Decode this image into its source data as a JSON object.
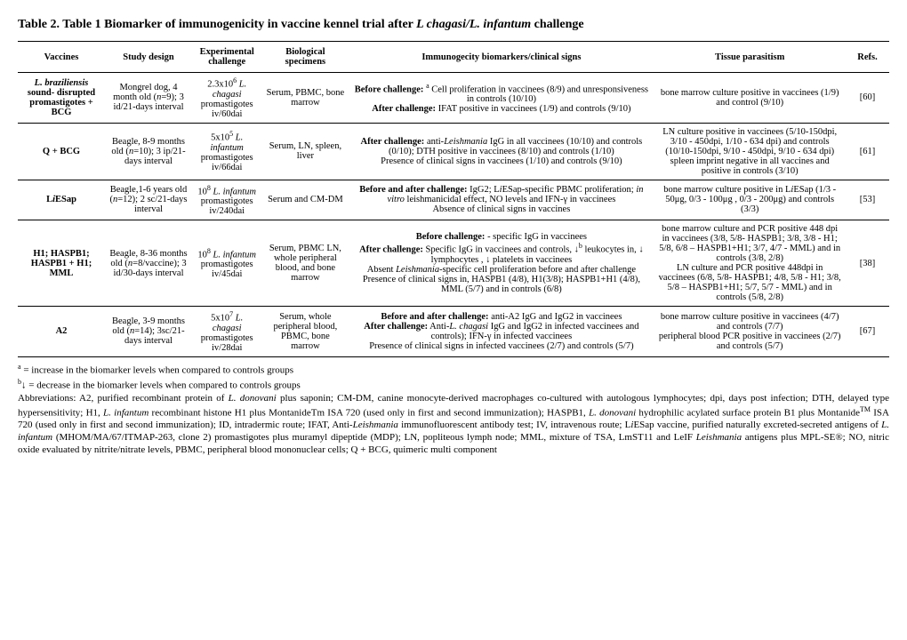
{
  "title_prefix": "Table 2. Table 1 Biomarker of immunogenicity in vaccine kennel trial after ",
  "title_em": "L chagasi/L. infantum",
  "title_suffix": " challenge",
  "headers": {
    "c1": "Vaccines",
    "c2": "Study design",
    "c3": "Experimental challenge",
    "c4": "Biological specimens",
    "c5": "Immunogecity biomarkers/clinical signs",
    "c6": "Tissue parasitism",
    "c7": "Refs."
  },
  "rows": [
    {
      "vaccine": "<em>L. braziliensis</em> sound- disrupted promastigotes + BCG",
      "study": "Mongrel dog, 4 month old (<em>n</em>=9); 3 id/21-days interval",
      "challenge": "2.3x10<span class='sup'>6</span> <em>L. chagasi</em> promastigotes iv/60dai",
      "specimen": "Serum, PBMC, bone marrow",
      "biom": "<b>Before challenge:</b> <span class='sup'>a</span> Cell proliferation  in vaccinees (8/9) and unresponsiveness in controls (10/10)<br><b>After challenge:</b> IFAT positive in vaccinees (1/9) and controls (9/10)",
      "tissue": "bone marrow culture positive in vaccinees (1/9) and control (9/10)",
      "ref": "[60]"
    },
    {
      "vaccine": "Q + BCG",
      "study": "Beagle, 8-9 months old (<em>n</em>=10); 3 ip/21-days interval",
      "challenge": "5x10<span class='sup'>5</span> <em>L. infantum</em> promastigotes iv/66dai",
      "specimen": "Serum, LN, spleen, liver",
      "biom": "<b>After challenge:</b>  anti-<em>Leishmania</em> IgG in all vaccinees (10/10) and controls (0/10); DTH positive in vaccinees (8/10) and controls (1/10)<br>Presence of clinical signs in vaccinees (1/10) and controls (9/10)",
      "tissue": "LN culture positive in vaccinees (5/10-150dpi, 3/10 - 450dpi, 1/10 - 634 dpi) and controls (10/10-150dpi, 9/10 - 450dpi, 9/10 - 634 dpi)<br>spleen imprint negative in all vaccines and positive in controls (3/10)",
      "ref": "[61]"
    },
    {
      "vaccine": "L<em>i</em>ESap",
      "study": "Beagle,1-6 years old (<em>n</em>=12); 2 sc/21-days interval",
      "challenge": "10<span class='sup'>8</span> <em>L. infantum</em> promastigotes iv/240dai",
      "specimen": "Serum and CM-DM",
      "biom": "<b>Before and after challenge:</b> IgG2;  L<em>i</em>ESap-specific PBMC proliferation; <em>in vitro</em> leishmanicidal effect,  NO levels and  IFN-γ in vaccinees<br>Absence of clinical signs in vaccines",
      "tissue": "bone marrow culture positive in L<em>i</em>ESap (1/3 - 50μg, 0/3 - 100μg , 0/3 - 200μg) and controls (3/3)",
      "ref": "[53]"
    },
    {
      "vaccine": "H1; HASPB1; HASPB1 + H1; MML",
      "study": "Beagle, 8-36 months old (<em>n</em>=8/vaccine); 3 id/30-days interval",
      "challenge": "10<span class='sup'>8</span> <em>L. infantum</em> promastigotes iv/45dai",
      "specimen": "Serum, PBMC LN, whole peripheral blood, and bone marrow",
      "biom": "<b>Before challenge:</b> -  specific IgG in vaccinees<br><b>After challenge:</b>  Specific IgG in vaccinees and controls, ↓<span class='sup'>b</span> leukocytes in, ↓ lymphocytes , ↓ platelets in vaccinees<br>Absent <em>Leishmania</em>-specific cell proliferation before and after challenge<br>Presence of clinical signs in, HASPB1 (4/8), H1(3/8); HASPB1+H1 (4/8), MML (5/7)  and in controls (6/8)",
      "tissue": "bone marrow culture and PCR positive 448 dpi in vaccinees (3/8, 5/8- HASPB1; 3/8, 3/8 - H1; 5/8, 6/8 – HASPB1+H1; 3/7, 4/7 - MML) and in controls (3/8, 2/8)<br>LN culture and PCR positive 448dpi in vaccinees (6/8, 5/8- HASPB1; 4/8, 5/8 - H1; 3/8, 5/8 – HASPB1+H1; 5/7, 5/7 - MML) and in controls (5/8, 2/8)",
      "ref": "[38]"
    },
    {
      "vaccine": "A2",
      "study": "Beagle, 3-9 months old (<em>n</em>=14); 3sc/21-days interval",
      "challenge": "5x10<span class='sup'>7</span> <em>L. chagasi</em> promastigotes iv/28dai",
      "specimen": "Serum, whole peripheral blood, PBMC,  bone marrow",
      "biom": "<b>Before and after challenge:</b> anti-A2 IgG and IgG2 in vaccinees<br><b>After challenge:</b>  Anti-<em>L. chagasi</em> IgG and IgG2 in  infected vaccinees and controls);  IFN-γ in infected vaccinees<br>Presence of clinical signs in infected vaccinees (2/7) and controls (5/7)",
      "tissue": "bone marrow culture positive in vaccinees (4/7) and controls (7/7)<br>peripheral blood PCR positive in vaccinees (2/7) and controls (5/7)",
      "ref": "[67]"
    }
  ],
  "foot_a": "a",
  "foot_a_text": " = increase in the biomarker levels when compared to controls groups",
  "foot_b": "b",
  "foot_b_text": "↓ = decrease in the biomarker levels when compared to controls groups",
  "abbrev": "Abbreviations: A2, purified recombinant protein of <em>L. donovani</em> plus saponin; CM-DM, canine monocyte-derived macrophages co-cultured with autologous lymphocytes; dpi, days post infection; DTH, delayed type hypersensitivity; H1, <em>L. infantum</em> recombinant histone H1 plus MontanideTm ISA 720 (used only in first and second immunization); HASPB1, <em>L. donovani</em> hydrophilic acylated surface protein B1 plus Montanide<span class='sup'>TM</span> ISA 720 (used only in first and second immunization); ID, intradermic route; IFAT, Anti-<em>Leishmania</em> immunofluorescent antibody test; IV, intravenous route; L<em>i</em>ESap vaccine, purified naturally excreted-secreted antigens of <em>L. infantum</em> (MHOM/MA/67/ITMAP-263, clone 2) promastigotes plus muramyl dipeptide (MDP); LN, popliteous lymph node; MML, mixture of TSA, LmST11 and LeIF <em>Leishmania</em> antigens plus MPL-SE®; NO, nitric oxide evaluated by nitrite/nitrate levels, PBMC, peripheral blood mononuclear cells; Q + BCG, quimeric multi component"
}
